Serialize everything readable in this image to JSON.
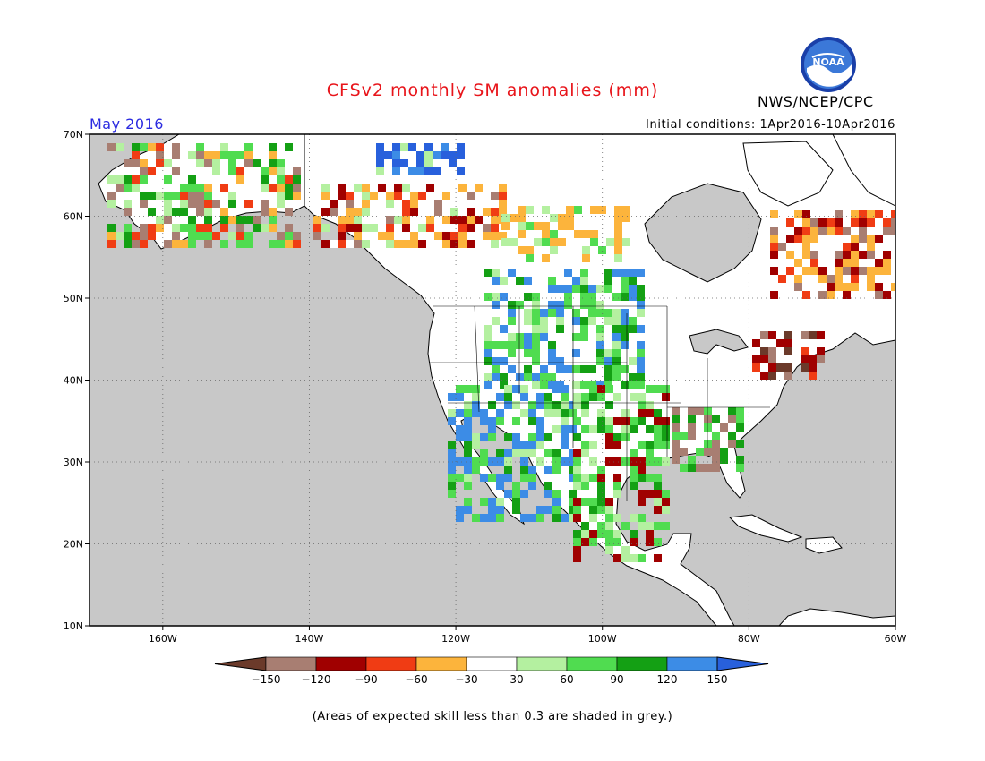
{
  "header": {
    "title": "CFSv2 monthly SM anomalies (mm)",
    "agency": "NWS/NCEP/CPC",
    "month": "May 2016",
    "initial_conditions": "Initial conditions:  1Apr2016-10Apr2016",
    "logo_text": "NOAA"
  },
  "map": {
    "lat_range": [
      10,
      70
    ],
    "lon_range": [
      -170,
      -60
    ],
    "lat_ticks": [
      "70N",
      "60N",
      "50N",
      "40N",
      "30N",
      "20N",
      "10N"
    ],
    "lon_ticks": [
      "160W",
      "140W",
      "120W",
      "100W",
      "80W",
      "60W"
    ],
    "colors": {
      "land": "#ffffff",
      "ocean_mask": "#c8c8c8",
      "coast": "#000000"
    }
  },
  "colorbar": {
    "labels": [
      "−150",
      "−120",
      "−90",
      "−60",
      "−30",
      "30",
      "60",
      "90",
      "120",
      "150"
    ],
    "colors": [
      "#6b3a2a",
      "#a87e72",
      "#a00000",
      "#f03c14",
      "#fcb43c",
      "#ffffff",
      "#b4f0a0",
      "#50dc50",
      "#14a014",
      "#3c8ce6",
      "#2860dc"
    ]
  },
  "footnote": "(Areas of expected skill less than 0.3 are shaded in grey.)"
}
